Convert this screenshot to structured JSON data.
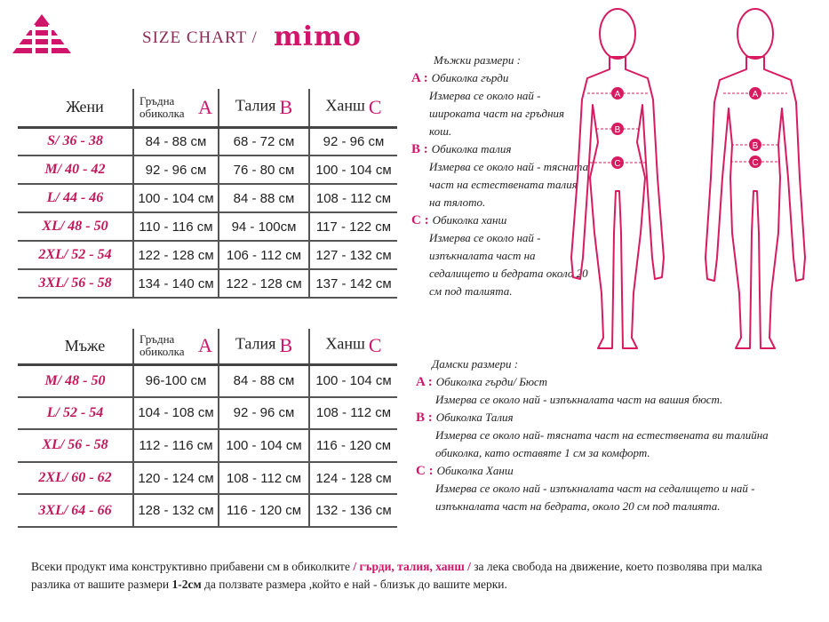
{
  "header": {
    "title": "SIZE CHART /",
    "brand": "mimo"
  },
  "women_table": {
    "columns": [
      "Жени",
      "Гръдна обиколка",
      "Талия",
      "Ханш"
    ],
    "letters": [
      "A",
      "B",
      "C"
    ],
    "rows": [
      [
        "S/ 36 - 38",
        "84 - 88 см",
        "68 - 72 см",
        "92 - 96 см"
      ],
      [
        "M/ 40 - 42",
        "92 - 96 см",
        "76 - 80 см",
        "100 - 104 см"
      ],
      [
        "L/ 44 - 46",
        "100 - 104 см",
        "84 - 88 см",
        "108 - 112 см"
      ],
      [
        "XL/ 48 - 50",
        "110 - 116 см",
        "94 - 100см",
        "117 - 122 см"
      ],
      [
        "2XL/ 52 - 54",
        "122 - 128 см",
        "106 - 112 см",
        "127 - 132 см"
      ],
      [
        "3XL/ 56 - 58",
        "134 - 140 см",
        "122 - 128 см",
        "137 - 142 см"
      ]
    ]
  },
  "men_table": {
    "columns": [
      "Мъже",
      "Гръдна обиколка",
      "Талия",
      "Ханш"
    ],
    "letters": [
      "A",
      "B",
      "C"
    ],
    "rows": [
      [
        "M/ 48 - 50",
        "96-100 см",
        "84 - 88 см",
        "100 - 104 см"
      ],
      [
        "L/ 52 - 54",
        "104 - 108 см",
        "92 - 96 см",
        "108 - 112 см"
      ],
      [
        "XL/ 56 - 58",
        "112 - 116 см",
        "100 - 104 см",
        "116 - 120 см"
      ],
      [
        "2XL/ 60 - 62",
        "120 - 124 см",
        "108 - 112 см",
        "124 - 128 см"
      ],
      [
        "3XL/ 64 - 66",
        "128 - 132 см",
        "116 - 120 см",
        "132 - 136 см"
      ]
    ]
  },
  "men_legend": {
    "title": "Мъжки размери :",
    "items": [
      {
        "letter": "A :",
        "name": "Обиколка гърди",
        "description": "Измерва се около най - широката част на гръдния кош."
      },
      {
        "letter": "B :",
        "name": "Обиколка талия",
        "description": "Измерва се около най - тясната част на естествената талия на тялото."
      },
      {
        "letter": "C :",
        "name": "Обиколка ханш",
        "description": "Измерва се около най - изпъкналата част на седалището и бедрата около 20 см под талията."
      }
    ]
  },
  "women_legend": {
    "title": "Дамски размери :",
    "items": [
      {
        "letter": "A :",
        "name": "Обиколка гърди/ Бюст",
        "description": "Измерва се около най - изпъкналата част на вашия бюст."
      },
      {
        "letter": "B :",
        "name": "Обиколка Талия",
        "description": "Измерва се около най- тясната част на естествената ви талийна обиколка, като оставяте 1 см за комфорт."
      },
      {
        "letter": "C :",
        "name": "Обиколка Ханш",
        "description": "Измерва се около най - изпъкналата част на седалището и най - изпъкналата част на бедрата, около 20 см под талията."
      }
    ]
  },
  "footer": {
    "text_before": "Всеки продукт има конструктивно прибавени см в обиколките ",
    "highlight": "/ гърди, талия, ханш /",
    "text_middle": " за лека свобода на движение, което позволява при малка разлика от вашите размери ",
    "bold": "1-2см",
    "text_after": " да ползвате размера ,който е най - близък до вашите мерки."
  }
}
